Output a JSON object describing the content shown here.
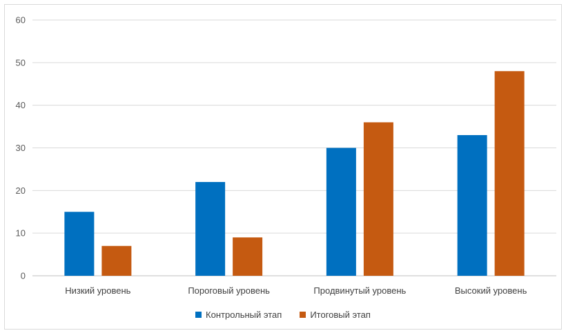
{
  "chart_data": {
    "type": "bar",
    "categories": [
      "Низкий уровень",
      "Пороговый уровень",
      "Продвинутый уровень",
      "Высокий уровень"
    ],
    "series": [
      {
        "name": "Контрольный этап",
        "values": [
          15,
          22,
          30,
          33
        ],
        "color": "#0070C0"
      },
      {
        "name": "Итоговый этап",
        "values": [
          7,
          9,
          36,
          48
        ],
        "color": "#C55A11"
      }
    ],
    "ylim": [
      0,
      60
    ],
    "yticks": [
      "0",
      "10",
      "20",
      "30",
      "40",
      "50",
      "60"
    ],
    "grid": true,
    "legend_position": "bottom"
  }
}
